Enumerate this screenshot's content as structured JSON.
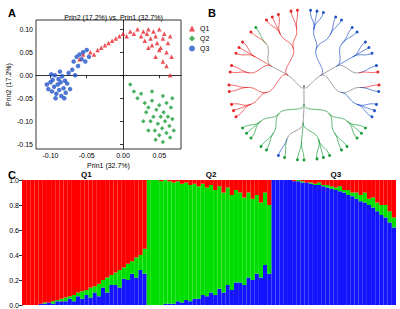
{
  "chart_data": [
    {
      "type": "scatter",
      "panel_label": "A",
      "title": "Prin2 (17.2%) vs. Prin1 (32.7%)",
      "x_label": "Prin1 (32.7%)",
      "y_label": "Prin2 (17.2%)",
      "xlim": [
        -0.12,
        0.08
      ],
      "xticks": [
        {
          "value": -0.1,
          "label": "-0.10"
        },
        {
          "value": -0.05,
          "label": "-0.05"
        },
        {
          "value": 0,
          "label": "0.00"
        },
        {
          "value": 0.05,
          "label": "0.05"
        }
      ],
      "ylim": [
        -0.16,
        0.12
      ],
      "yticks": [
        {
          "value": -0.15,
          "label": "-0.15"
        },
        {
          "value": -0.1,
          "label": "-0.10"
        },
        {
          "value": -0.05,
          "label": "-0.05"
        },
        {
          "value": 0,
          "label": "0.00"
        },
        {
          "value": 0.05,
          "label": "0.05"
        },
        {
          "value": 0.1,
          "label": "0.10"
        }
      ],
      "grid": false,
      "legend": "upper right",
      "series": [
        {
          "name": "Q1",
          "color": "#e8262a",
          "marker": "triangle",
          "values": [
            [
              -0.06,
              0.035
            ],
            [
              -0.055,
              0.045
            ],
            [
              -0.045,
              0.05
            ],
            [
              -0.04,
              0.045
            ],
            [
              -0.035,
              0.055
            ],
            [
              -0.03,
              0.06
            ],
            [
              -0.025,
              0.065
            ],
            [
              -0.02,
              0.07
            ],
            [
              -0.015,
              0.075
            ],
            [
              -0.01,
              0.08
            ],
            [
              -0.005,
              0.085
            ],
            [
              0.0,
              0.09
            ],
            [
              0.005,
              0.085
            ],
            [
              0.01,
              0.095
            ],
            [
              0.015,
              0.09
            ],
            [
              0.02,
              0.1
            ],
            [
              0.025,
              0.085
            ],
            [
              0.028,
              0.095
            ],
            [
              0.03,
              0.075
            ],
            [
              0.033,
              0.09
            ],
            [
              0.035,
              0.1
            ],
            [
              0.038,
              0.08
            ],
            [
              0.04,
              0.065
            ],
            [
              0.042,
              0.095
            ],
            [
              0.045,
              0.085
            ],
            [
              0.047,
              0.07
            ],
            [
              0.05,
              0.1
            ],
            [
              0.052,
              0.06
            ],
            [
              0.055,
              0.08
            ],
            [
              0.057,
              0.09
            ],
            [
              0.06,
              0.05
            ],
            [
              0.062,
              0.07
            ],
            [
              0.065,
              0.085
            ],
            [
              0.067,
              0.04
            ],
            [
              0.055,
              0.03
            ],
            [
              0.045,
              0.04
            ],
            [
              0.06,
              0.02
            ],
            [
              0.065,
              0.0
            ],
            [
              0.05,
              0.055
            ],
            [
              0.035,
              0.06
            ]
          ]
        },
        {
          "name": "Q2",
          "color": "#1e9e3a",
          "marker": "diamond",
          "values": [
            [
              0.01,
              -0.02
            ],
            [
              0.015,
              -0.035
            ],
            [
              0.02,
              -0.05
            ],
            [
              0.025,
              -0.04
            ],
            [
              0.03,
              -0.06
            ],
            [
              0.032,
              -0.08
            ],
            [
              0.035,
              -0.07
            ],
            [
              0.038,
              -0.1
            ],
            [
              0.04,
              -0.055
            ],
            [
              0.042,
              -0.09
            ],
            [
              0.044,
              -0.12
            ],
            [
              0.046,
              -0.075
            ],
            [
              0.048,
              -0.105
            ],
            [
              0.05,
              -0.065
            ],
            [
              0.05,
              -0.13
            ],
            [
              0.052,
              -0.09
            ],
            [
              0.054,
              -0.115
            ],
            [
              0.056,
              -0.08
            ],
            [
              0.058,
              -0.1
            ],
            [
              0.06,
              -0.125
            ],
            [
              0.06,
              -0.06
            ],
            [
              0.062,
              -0.09
            ],
            [
              0.064,
              -0.11
            ],
            [
              0.066,
              -0.07
            ],
            [
              0.068,
              -0.095
            ],
            [
              0.07,
              -0.12
            ],
            [
              0.045,
              -0.14
            ],
            [
              0.055,
              -0.145
            ],
            [
              0.065,
              -0.135
            ],
            [
              0.035,
              -0.12
            ],
            [
              0.04,
              -0.035
            ],
            [
              0.055,
              -0.045
            ],
            [
              0.068,
              -0.05
            ],
            [
              0.028,
              -0.1
            ]
          ]
        },
        {
          "name": "Q3",
          "color": "#2255c8",
          "marker": "circle",
          "values": [
            [
              -0.105,
              -0.02
            ],
            [
              -0.103,
              -0.03
            ],
            [
              -0.1,
              -0.015
            ],
            [
              -0.098,
              -0.035
            ],
            [
              -0.097,
              -0.01
            ],
            [
              -0.095,
              -0.025
            ],
            [
              -0.094,
              0.0
            ],
            [
              -0.092,
              -0.04
            ],
            [
              -0.09,
              -0.02
            ],
            [
              -0.089,
              -0.008
            ],
            [
              -0.088,
              -0.032
            ],
            [
              -0.086,
              -0.015
            ],
            [
              -0.085,
              -0.045
            ],
            [
              -0.084,
              -0.002
            ],
            [
              -0.082,
              -0.028
            ],
            [
              -0.08,
              -0.012
            ],
            [
              -0.079,
              -0.038
            ],
            [
              -0.077,
              -0.018
            ],
            [
              -0.075,
              0.005
            ],
            [
              -0.073,
              -0.03
            ],
            [
              -0.07,
              0.012
            ],
            [
              -0.068,
              0.03
            ],
            [
              -0.066,
              0.0
            ],
            [
              -0.064,
              0.04
            ],
            [
              -0.062,
              0.02
            ],
            [
              -0.06,
              0.045
            ],
            [
              -0.057,
              0.035
            ],
            [
              -0.055,
              0.05
            ],
            [
              -0.052,
              0.03
            ],
            [
              -0.05,
              0.055
            ],
            [
              -0.047,
              0.04
            ],
            [
              -0.099,
              0.002
            ],
            [
              -0.093,
              -0.05
            ],
            [
              -0.087,
              0.008
            ],
            [
              -0.081,
              -0.05
            ]
          ]
        }
      ]
    },
    {
      "type": "tree",
      "panel_label": "B",
      "series": [
        {
          "name": "Q1",
          "color": "#e8262a"
        },
        {
          "name": "Q2",
          "color": "#1e9e3a"
        },
        {
          "name": "Q3",
          "color": "#2255c8"
        }
      ],
      "tree": [
        [
          [
            [
              "Q3",
              "Q3",
              "Q3"
            ],
            [
              "Q3",
              "Q3"
            ]
          ],
          [
            [
              "Q3",
              "Q3"
            ],
            [
              "Q3",
              "Q3",
              "Q3"
            ],
            [
              "Q3",
              "Q1"
            ]
          ],
          [
            [
              "Q1",
              "Q3"
            ],
            [
              "Q3",
              "Q3",
              "Q3"
            ]
          ]
        ],
        [
          [
            [
              "Q2",
              "Q2",
              "Q2"
            ],
            [
              "Q2",
              "Q2"
            ]
          ],
          [
            [
              "Q2",
              "Q2",
              "Q2"
            ],
            [
              "Q2",
              "Q2"
            ],
            [
              "Q2",
              "Q3"
            ]
          ],
          [
            [
              "Q2",
              "Q2"
            ],
            [
              "Q2",
              "Q2",
              "Q2"
            ]
          ]
        ],
        [
          [
            [
              "Q1",
              "Q1",
              "Q1"
            ],
            [
              "Q1",
              "Q1"
            ]
          ],
          [
            [
              "Q1",
              "Q1"
            ],
            [
              "Q1",
              "Q1",
              "Q1"
            ],
            [
              "Q1",
              "Q2"
            ]
          ],
          [
            [
              "Q1",
              "Q1",
              "Q1"
            ],
            [
              "Q1",
              "Q1"
            ]
          ]
        ]
      ]
    },
    {
      "type": "bar",
      "panel_label": "C",
      "stacked": true,
      "categories": [
        null,
        null,
        null,
        null,
        null,
        null,
        null,
        null,
        null,
        null,
        null,
        null,
        null,
        null,
        null,
        "Q1",
        null,
        null,
        null,
        null,
        null,
        null,
        null,
        null,
        null,
        null,
        null,
        null,
        null,
        null,
        null,
        null,
        null,
        null,
        null,
        null,
        null,
        null,
        null,
        null,
        null,
        null,
        null,
        null,
        null,
        "Q2",
        null,
        null,
        null,
        null,
        null,
        null,
        null,
        null,
        null,
        null,
        null,
        null,
        null,
        null,
        null,
        null,
        null,
        null,
        null,
        null,
        null,
        null,
        null,
        null,
        null,
        null,
        null,
        null,
        null,
        "Q3",
        null,
        null,
        null,
        null,
        null,
        null,
        null,
        null,
        null,
        null,
        null,
        null,
        null,
        null
      ],
      "ylim": [
        0,
        1
      ],
      "yticks": [
        {
          "value": 0,
          "label": "0.0"
        },
        0.2,
        0.4,
        0.6,
        0.8,
        {
          "value": 1,
          "label": "1.0"
        }
      ],
      "series": [
        {
          "name": "Q3",
          "color": "#1414ff",
          "values": [
            0,
            0,
            0,
            0,
            0.01,
            0.01,
            0.02,
            0.01,
            0.03,
            0.03,
            0.03,
            0.05,
            0.03,
            0.07,
            0.05,
            0.08,
            0.06,
            0.1,
            0.07,
            0.14,
            0.1,
            0.16,
            0.16,
            0.14,
            0.21,
            0.2,
            0.25,
            0.22,
            0.28,
            0.25,
            0,
            0,
            0,
            0,
            0.01,
            0.01,
            0.01,
            0.03,
            0.02,
            0.04,
            0.03,
            0.05,
            0.05,
            0.08,
            0.07,
            0.1,
            0.08,
            0.13,
            0.1,
            0.16,
            0.12,
            0.18,
            0.18,
            0.16,
            0.22,
            0.2,
            0.25,
            0.22,
            0.32,
            0.25,
            1,
            1,
            1,
            1,
            1,
            0.99,
            0.99,
            0.98,
            0.98,
            0.97,
            0.96,
            0.96,
            0.95,
            0.94,
            0.93,
            0.92,
            0.91,
            0.9,
            0.88,
            0.87,
            0.85,
            0.83,
            0.82,
            0.8,
            0.78,
            0.75,
            0.72,
            0.7,
            0.66,
            0.62
          ]
        },
        {
          "name": "Q2",
          "color": "#00dd00",
          "values": [
            0,
            0,
            0,
            0,
            0,
            0.01,
            0,
            0.02,
            0.01,
            0.02,
            0.03,
            0.02,
            0.05,
            0.03,
            0.06,
            0.04,
            0.08,
            0.05,
            0.1,
            0.06,
            0.12,
            0.08,
            0.1,
            0.14,
            0.09,
            0.13,
            0.1,
            0.16,
            0.12,
            0.2,
            1,
            1,
            1,
            0.99,
            0.99,
            0.98,
            0.97,
            0.96,
            0.95,
            0.94,
            0.93,
            0.92,
            0.9,
            0.89,
            0.87,
            0.86,
            0.84,
            0.82,
            0.8,
            0.78,
            0.76,
            0.74,
            0.72,
            0.7,
            0.68,
            0.65,
            0.63,
            0.6,
            0.58,
            0.55,
            0,
            0,
            0,
            0,
            0,
            0,
            0.01,
            0.01,
            0,
            0.01,
            0.01,
            0.02,
            0.01,
            0.02,
            0.02,
            0.02,
            0.04,
            0.02,
            0.04,
            0.03,
            0.05,
            0.05,
            0.08,
            0.05,
            0.08,
            0.07,
            0.08,
            0.1,
            0.09,
            0.08
          ]
        },
        {
          "name": "Q1",
          "color": "#ff0000",
          "values": [
            1,
            1,
            1,
            1,
            0.99,
            0.98,
            0.98,
            0.97,
            0.96,
            0.95,
            0.94,
            0.93,
            0.92,
            0.9,
            0.89,
            0.88,
            0.86,
            0.85,
            0.83,
            0.8,
            0.78,
            0.76,
            0.74,
            0.72,
            0.7,
            0.67,
            0.65,
            0.62,
            0.6,
            0.55,
            0,
            0,
            0,
            0.01,
            0,
            0.01,
            0.02,
            0.01,
            0.03,
            0.02,
            0.04,
            0.03,
            0.05,
            0.03,
            0.06,
            0.04,
            0.08,
            0.05,
            0.1,
            0.06,
            0.12,
            0.08,
            0.1,
            0.14,
            0.1,
            0.15,
            0.12,
            0.18,
            0.1,
            0.2,
            0,
            0,
            0,
            0,
            0,
            0.01,
            0,
            0.01,
            0.02,
            0.02,
            0.03,
            0.02,
            0.04,
            0.04,
            0.05,
            0.06,
            0.05,
            0.08,
            0.08,
            0.1,
            0.1,
            0.12,
            0.1,
            0.15,
            0.14,
            0.18,
            0.2,
            0.2,
            0.25,
            0.3
          ]
        }
      ]
    }
  ]
}
